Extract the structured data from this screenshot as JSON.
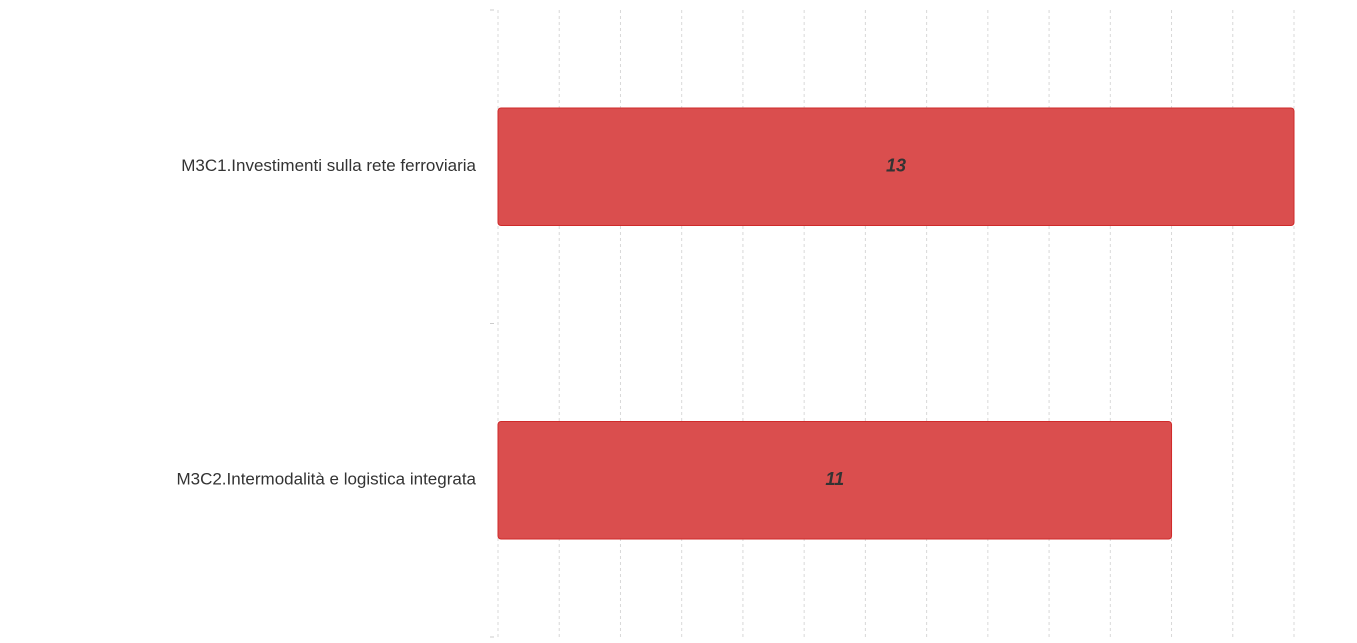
{
  "chart_data": {
    "type": "bar",
    "orientation": "horizontal",
    "categories": [
      "M3C1.Investimenti sulla rete ferroviaria",
      "M3C2.Intermodalità e logistica integrata"
    ],
    "values": [
      13,
      11
    ],
    "color": "#d94a4a",
    "xlim": [
      0,
      13
    ],
    "xticks": [
      0,
      1,
      2,
      3,
      4,
      5,
      6,
      7,
      8,
      9,
      10,
      11,
      12,
      13
    ],
    "grid": true
  }
}
